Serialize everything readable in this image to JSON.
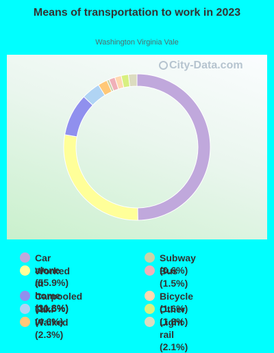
{
  "title": "Means of transportation to work in 2023",
  "subtitle": "Washington Virginia Vale",
  "watermark": "City-Data.com",
  "chart_data": {
    "type": "pie",
    "donut": true,
    "categories": [
      "Car alone",
      "Worked\nat home",
      "Carpooled",
      "Taxi",
      "Walked",
      "Subway",
      "Bus",
      "Bicycle",
      "Other",
      "Light rail"
    ],
    "values": [
      55.9,
      31.3,
      10.5,
      4.6,
      2.3,
      0.6,
      1.5,
      1.6,
      1.8,
      2.1
    ],
    "colors": [
      "#c0a8dc",
      "#ffff99",
      "#9090ee",
      "#b0d4f4",
      "#ffc878",
      "#c8d4a8",
      "#f0b0b8",
      "#ffd8b0",
      "#d8f080",
      "#dcdcc0"
    ],
    "legend_labels": [
      "Car alone (55.9%)",
      "Worked\nat home (31.3%)",
      "Carpooled (10.5%)",
      "Taxi (4.6%)",
      "Walked (2.3%)",
      "Subway (0.6%)",
      "Bus (1.5%)",
      "Bicycle (1.6%)",
      "Other (1.8%)",
      "Light rail (2.1%)"
    ],
    "slice_order": [
      0,
      5,
      1,
      6,
      2,
      7,
      3,
      8,
      4,
      9
    ],
    "legend_placement": "bottom"
  }
}
